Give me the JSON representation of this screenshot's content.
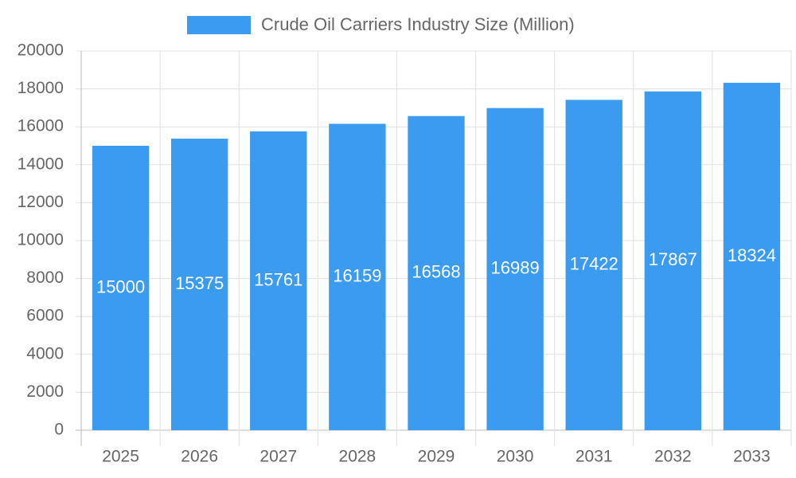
{
  "chart_data": {
    "type": "bar",
    "categories": [
      "2025",
      "2026",
      "2027",
      "2028",
      "2029",
      "2030",
      "2031",
      "2032",
      "2033"
    ],
    "series": [
      {
        "name": "Crude Oil Carriers Industry Size (Million)",
        "color": "#3a9bef",
        "values": [
          15000,
          15375,
          15761,
          16159,
          16568,
          16989,
          17422,
          17867,
          18324
        ]
      }
    ],
    "ylim": [
      0,
      20000
    ],
    "yticks": [
      0,
      2000,
      4000,
      6000,
      8000,
      10000,
      12000,
      14000,
      16000,
      18000,
      20000
    ],
    "grid": true
  }
}
